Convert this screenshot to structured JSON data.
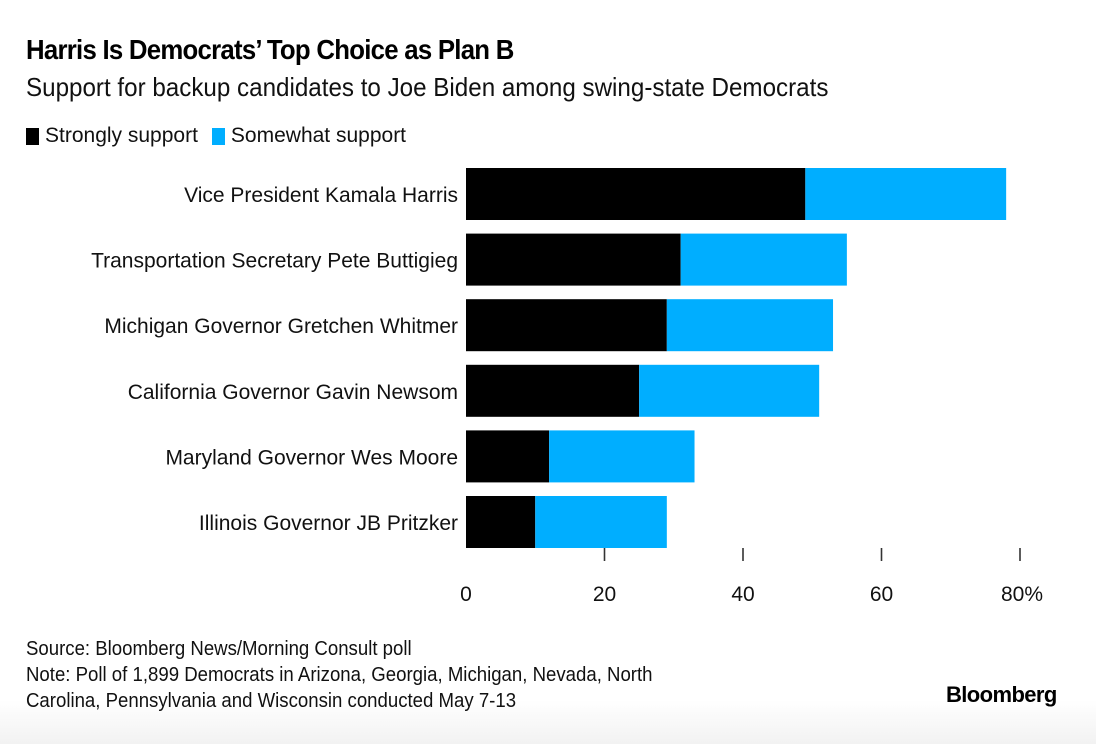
{
  "chart_data": {
    "type": "bar",
    "orientation": "horizontal",
    "stacked": true,
    "title": "Harris Is Democrats’ Top Choice as Plan B",
    "subtitle": "Support for backup candidates to Joe Biden among swing-state Democrats",
    "categories": [
      "Vice President Kamala Harris",
      "Transportation Secretary Pete Buttigieg",
      "Michigan Governor Gretchen Whitmer",
      "California Governor Gavin Newsom",
      "Maryland Governor Wes Moore",
      "Illinois Governor JB Pritzker"
    ],
    "series": [
      {
        "name": "Strongly support",
        "color": "#000000",
        "values": [
          49,
          31,
          29,
          25,
          12,
          10
        ]
      },
      {
        "name": "Somewhat support",
        "color": "#00AEFF",
        "values": [
          29,
          24,
          24,
          26,
          21,
          19
        ]
      }
    ],
    "xlabel": "",
    "ylabel": "",
    "xlim": [
      0,
      80
    ],
    "x_ticks": [
      0,
      20,
      40,
      60,
      80
    ],
    "x_tick_labels": [
      "0",
      "20",
      "40",
      "60",
      "80%"
    ],
    "grid": false,
    "legend_position": "top-left"
  },
  "footer": {
    "source": "Source: Bloomberg News/Morning Consult poll",
    "note_line1": "Note: Poll of 1,899 Democrats in Arizona, Georgia, Michigan, Nevada, North",
    "note_line2": "Carolina, Pennsylvania and Wisconsin conducted May 7-13",
    "brand": "Bloomberg"
  }
}
